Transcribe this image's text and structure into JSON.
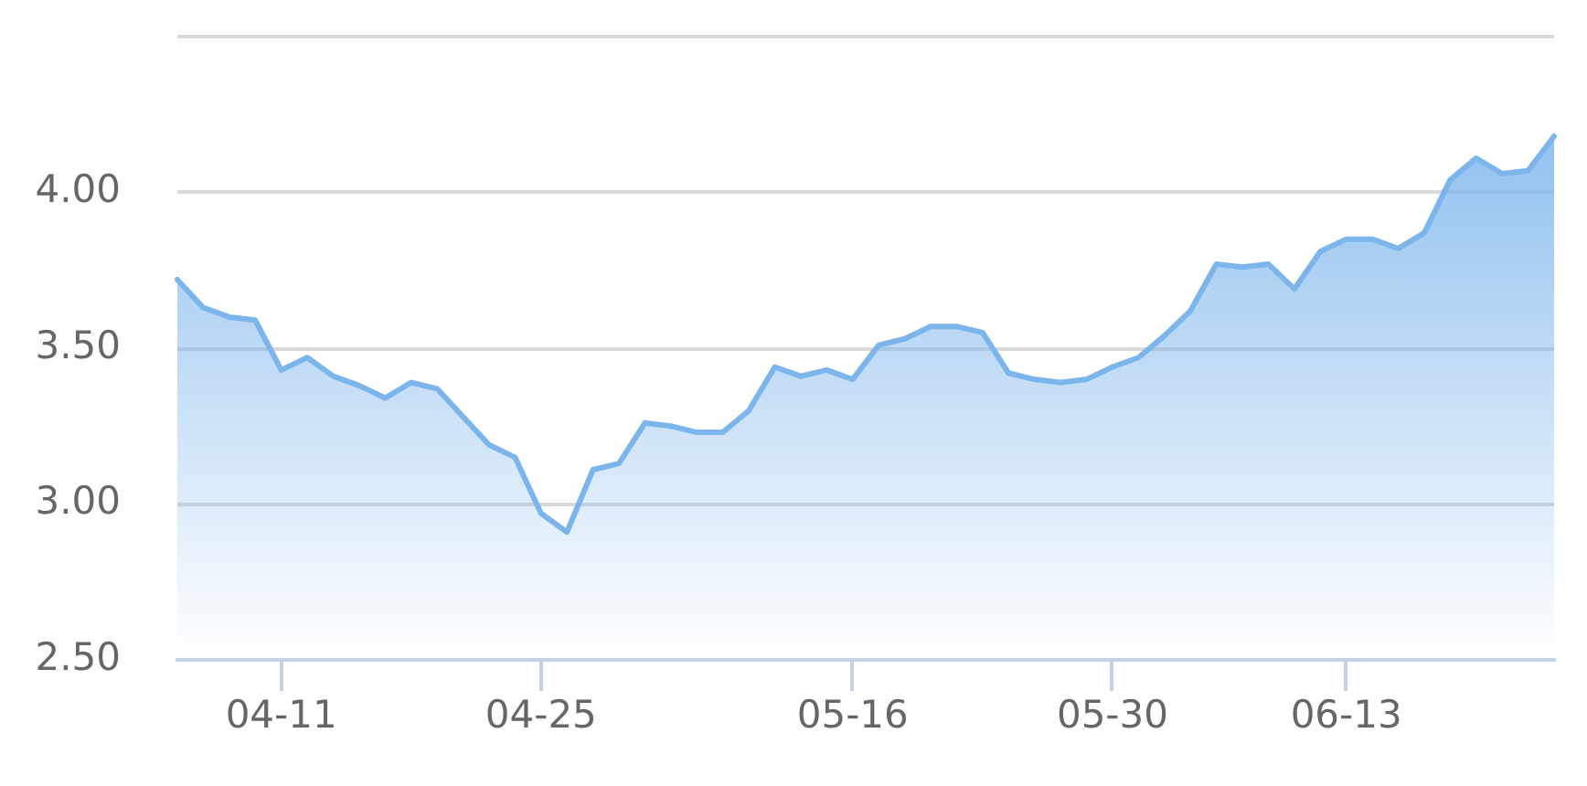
{
  "chart_data": {
    "type": "area",
    "categories": [
      null,
      null,
      null,
      null,
      "04-11",
      null,
      null,
      null,
      null,
      null,
      null,
      null,
      null,
      null,
      "04-25",
      null,
      null,
      null,
      null,
      null,
      null,
      null,
      null,
      null,
      null,
      null,
      "05-16",
      null,
      null,
      null,
      null,
      null,
      null,
      null,
      null,
      null,
      "05-30",
      null,
      null,
      null,
      null,
      null,
      null,
      null,
      null,
      "06-13",
      null,
      null,
      null,
      null,
      null,
      null,
      null,
      null
    ],
    "series": [
      {
        "color": "#7cb5ec",
        "values": [
          3.72,
          3.63,
          3.6,
          3.59,
          3.43,
          3.47,
          3.41,
          3.38,
          3.34,
          3.39,
          3.37,
          3.28,
          3.19,
          3.15,
          2.97,
          2.91,
          3.11,
          3.13,
          3.26,
          3.25,
          3.23,
          3.23,
          3.3,
          3.44,
          3.41,
          3.43,
          3.4,
          3.51,
          3.53,
          3.57,
          3.57,
          3.55,
          3.42,
          3.4,
          3.39,
          3.4,
          3.44,
          3.47,
          3.54,
          3.62,
          3.77,
          3.76,
          3.77,
          3.69,
          3.81,
          3.85,
          3.85,
          3.82,
          3.87,
          4.04,
          4.11,
          4.06,
          4.07,
          4.18
        ]
      }
    ],
    "ylim": [
      2.5,
      4.5
    ],
    "yticks": [
      {
        "value": 2.5,
        "label": "2.50"
      },
      {
        "value": 3,
        "label": "3.00"
      },
      {
        "value": 3.5,
        "label": "3.50"
      },
      {
        "value": 4,
        "label": "4.00"
      },
      {
        "value": 4.5,
        "label": null
      }
    ],
    "grid": "y"
  }
}
